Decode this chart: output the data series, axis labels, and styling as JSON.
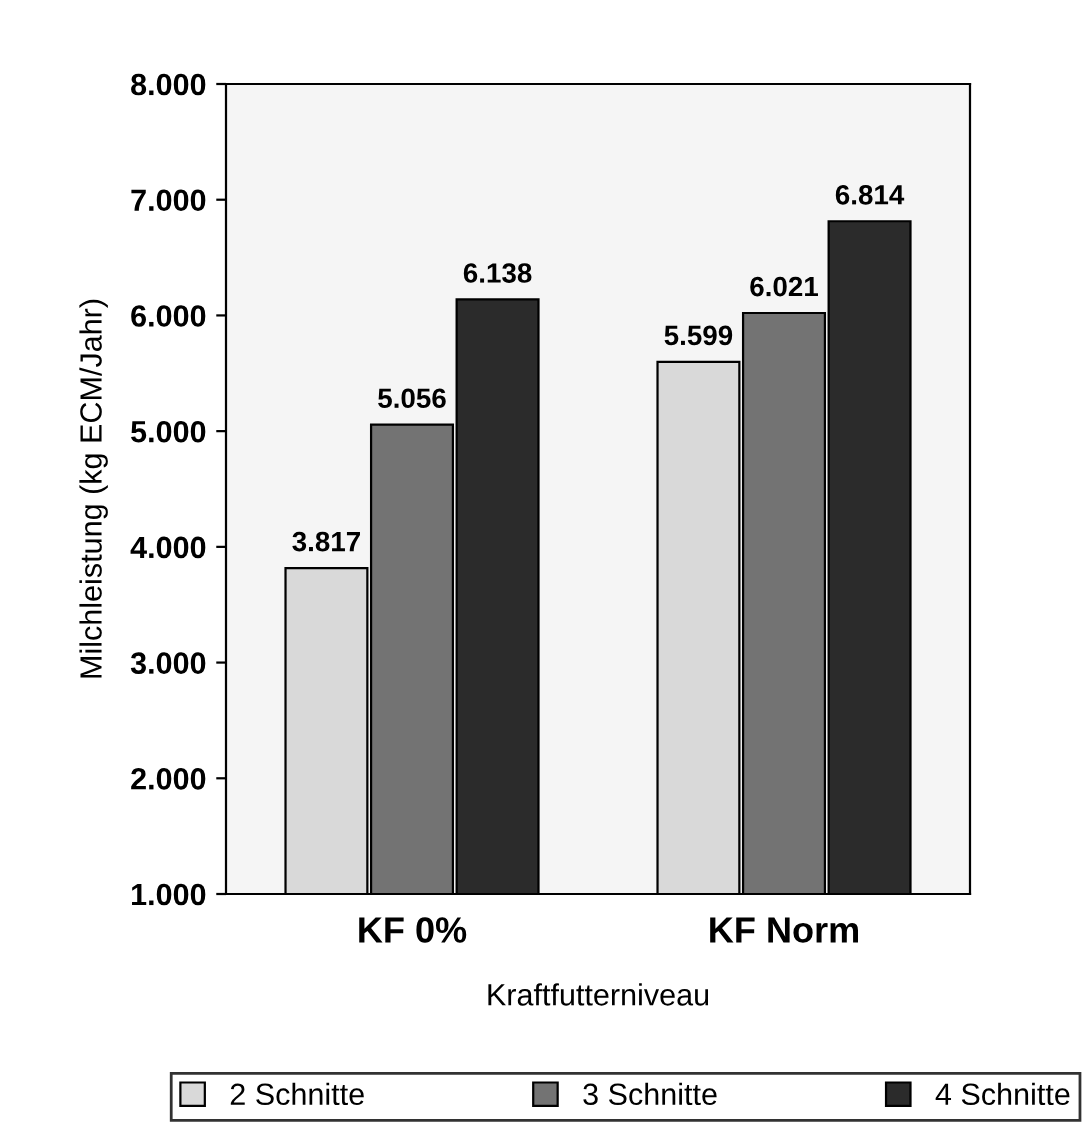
{
  "chart_data": {
    "type": "bar",
    "xlabel": "Kraftfutterniveau",
    "ylabel": "Milchleistung (kg ECM/Jahr)",
    "categories": [
      "KF 0%",
      "KF Norm"
    ],
    "series": [
      {
        "name": "2 Schnitte",
        "color": "#d9d9d9",
        "values": [
          3817,
          5599
        ],
        "value_labels": [
          "3.817",
          "5.599"
        ]
      },
      {
        "name": "3 Schnitte",
        "color": "#737373",
        "values": [
          5056,
          6021
        ],
        "value_labels": [
          "5.056",
          "6.021"
        ]
      },
      {
        "name": "4 Schnitte",
        "color": "#2b2b2b",
        "values": [
          6138,
          6814
        ],
        "value_labels": [
          "6.138",
          "6.814"
        ]
      }
    ],
    "ylim": [
      1000,
      8000
    ],
    "yticks": [
      {
        "value": 1000,
        "label": "1.000"
      },
      {
        "value": 2000,
        "label": "2.000"
      },
      {
        "value": 3000,
        "label": "3.000"
      },
      {
        "value": 4000,
        "label": "4.000"
      },
      {
        "value": 5000,
        "label": "5.000"
      },
      {
        "value": 6000,
        "label": "6.000"
      },
      {
        "value": 7000,
        "label": "7.000"
      },
      {
        "value": 8000,
        "label": "8.000"
      }
    ],
    "grid": false,
    "legend": "bottom"
  }
}
